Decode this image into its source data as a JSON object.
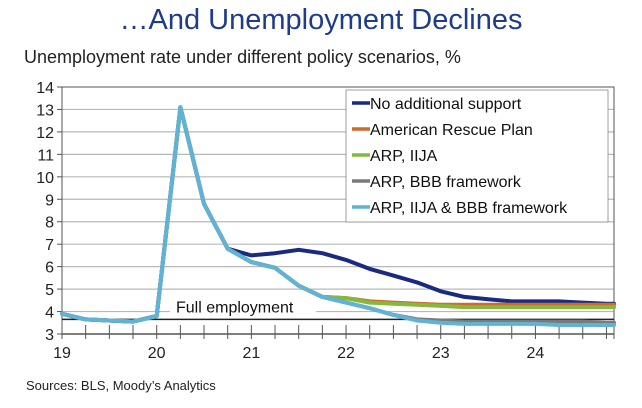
{
  "chart_data": {
    "type": "line",
    "title": "…And Unemployment Declines",
    "subtitle": "Unemployment rate under different policy scenarios, %",
    "source": "Sources: BLS, Moody’s Analytics",
    "xlabel": "",
    "ylabel": "",
    "xlim": [
      2019,
      2024.83
    ],
    "ylim": [
      3,
      14
    ],
    "yticks": [
      3,
      4,
      5,
      6,
      7,
      8,
      9,
      10,
      11,
      12,
      13,
      14
    ],
    "xticks": [
      {
        "value": 2019,
        "label": "19"
      },
      {
        "value": 2020,
        "label": "20"
      },
      {
        "value": 2021,
        "label": "21"
      },
      {
        "value": 2022,
        "label": "22"
      },
      {
        "value": 2023,
        "label": "23"
      },
      {
        "value": 2024,
        "label": "24"
      }
    ],
    "grid": true,
    "legend_position": "top-right",
    "reference_line": {
      "label": "Full employment",
      "value": 3.65,
      "color": "#222222"
    },
    "x": [
      2019,
      2019.25,
      2019.5,
      2019.75,
      2020,
      2020.25,
      2020.5,
      2020.75,
      2021,
      2021.25,
      2021.5,
      2021.75,
      2022,
      2022.25,
      2022.5,
      2022.75,
      2023,
      2023.25,
      2023.5,
      2023.75,
      2024,
      2024.25,
      2024.5,
      2024.75,
      2024.83
    ],
    "series": [
      {
        "name": "No additional support",
        "color": "#1a2a80",
        "values": [
          3.9,
          3.65,
          3.6,
          3.55,
          3.8,
          13.1,
          8.8,
          6.8,
          6.5,
          6.6,
          6.75,
          6.6,
          6.3,
          5.9,
          5.6,
          5.3,
          4.9,
          4.65,
          4.55,
          4.45,
          4.45,
          4.45,
          4.4,
          4.35,
          4.35
        ]
      },
      {
        "name": "American Rescue Plan",
        "color": "#d0692a",
        "values": [
          3.9,
          3.65,
          3.6,
          3.55,
          3.8,
          13.1,
          8.8,
          6.8,
          6.2,
          5.95,
          5.15,
          4.65,
          4.6,
          4.45,
          4.4,
          4.35,
          4.3,
          4.3,
          4.3,
          4.3,
          4.3,
          4.3,
          4.3,
          4.3,
          4.3
        ]
      },
      {
        "name": "ARP, IIJA",
        "color": "#86b83c",
        "values": [
          3.9,
          3.65,
          3.6,
          3.55,
          3.8,
          13.1,
          8.8,
          6.8,
          6.2,
          5.95,
          5.15,
          4.65,
          4.6,
          4.4,
          4.35,
          4.3,
          4.25,
          4.2,
          4.2,
          4.2,
          4.2,
          4.2,
          4.2,
          4.2,
          4.2
        ]
      },
      {
        "name": "ARP, BBB framework",
        "color": "#7a7a7a",
        "values": [
          3.9,
          3.65,
          3.6,
          3.55,
          3.8,
          13.1,
          8.8,
          6.8,
          6.2,
          5.95,
          5.15,
          4.65,
          4.4,
          4.15,
          3.85,
          3.65,
          3.6,
          3.55,
          3.55,
          3.55,
          3.55,
          3.55,
          3.55,
          3.5,
          3.5
        ]
      },
      {
        "name": "ARP, IIJA & BBB framework",
        "color": "#5fb3d6",
        "values": [
          3.9,
          3.65,
          3.6,
          3.55,
          3.8,
          13.1,
          8.8,
          6.8,
          6.2,
          5.95,
          5.15,
          4.65,
          4.4,
          4.15,
          3.85,
          3.6,
          3.5,
          3.45,
          3.45,
          3.45,
          3.45,
          3.4,
          3.4,
          3.4,
          3.4
        ]
      }
    ]
  }
}
